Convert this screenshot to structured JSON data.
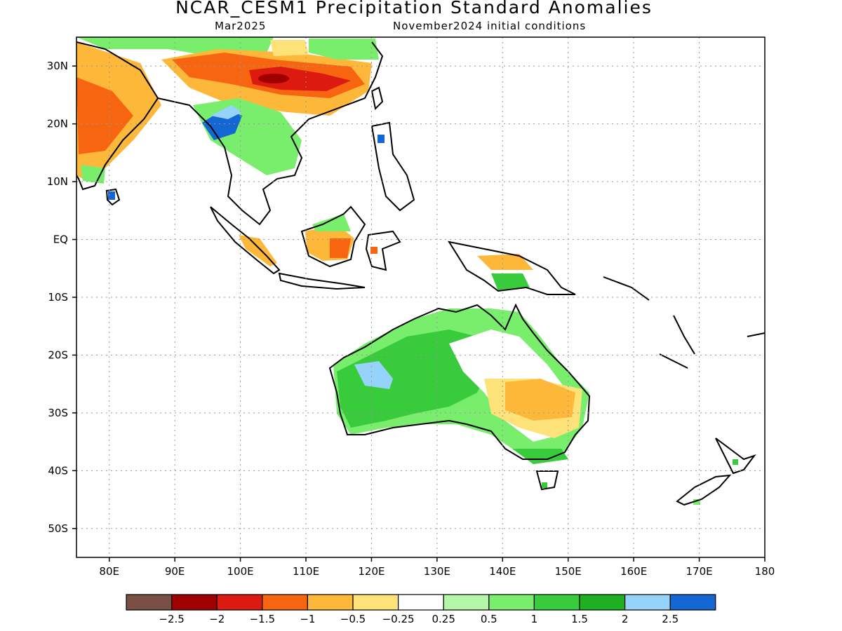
{
  "title": "NCAR_CESM1 Precipitation Standard Anomalies",
  "subtitle_left": "Mar2025",
  "subtitle_right": "November2024 initial conditions",
  "lat_labels": [
    "30N",
    "20N",
    "10N",
    "EQ",
    "10S",
    "20S",
    "30S",
    "40S",
    "50S"
  ],
  "lon_labels": [
    "80E",
    "90E",
    "100E",
    "110E",
    "120E",
    "130E",
    "140E",
    "150E",
    "160E",
    "170E",
    "180"
  ],
  "colorbar": {
    "colors": [
      "#7a5045",
      "#a00000",
      "#dd1a10",
      "#f86510",
      "#fdb83a",
      "#fde27a",
      "#ffffff",
      "#b5f6a8",
      "#78ee6c",
      "#38cc3c",
      "#1eb020",
      "#96d3fa",
      "#1466d3"
    ],
    "labels": [
      "−2.5",
      "−2",
      "−1.5",
      "−1",
      "−0.5",
      "−0.25",
      "0.25",
      "0.5",
      "1",
      "1.5",
      "2",
      "2.5"
    ]
  }
}
